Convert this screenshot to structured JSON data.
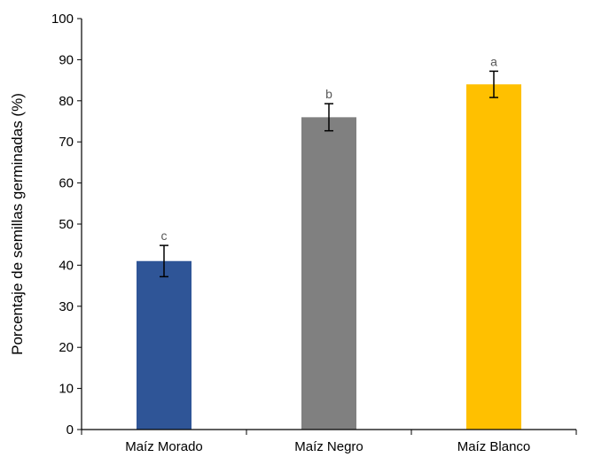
{
  "chart_data": {
    "type": "bar",
    "title": "",
    "xlabel": "",
    "ylabel": "Porcentaje de semillas germinadas  (%)",
    "ylim": [
      0,
      100
    ],
    "yticks": [
      0,
      10,
      20,
      30,
      40,
      50,
      60,
      70,
      80,
      90,
      100
    ],
    "grid": false,
    "categories": [
      "Maíz Morado",
      "Maíz Negro",
      "Maíz Blanco"
    ],
    "values": [
      41,
      76,
      84
    ],
    "error": [
      3.8,
      3.3,
      3.2
    ],
    "significance_labels": [
      "c",
      "b",
      "a"
    ],
    "colors": [
      "#2F5597",
      "#808080",
      "#FFC000"
    ]
  }
}
